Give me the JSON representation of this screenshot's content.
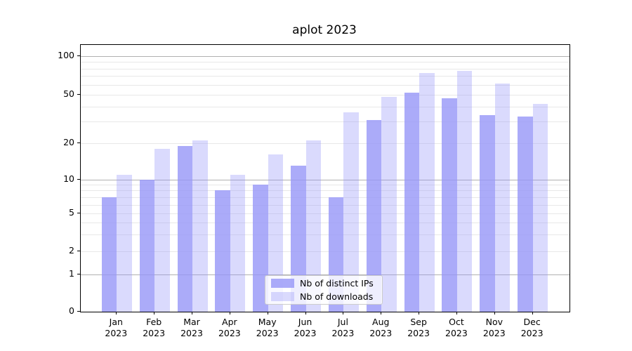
{
  "chart_data": {
    "type": "bar",
    "title": "aplot 2023",
    "months": [
      "Jan",
      "Feb",
      "Mar",
      "Apr",
      "May",
      "Jun",
      "Jul",
      "Aug",
      "Sep",
      "Oct",
      "Nov",
      "Dec"
    ],
    "year_label": "2023",
    "series": [
      {
        "name": "Nb of distinct IPs",
        "values": [
          7,
          10,
          19,
          8,
          9,
          13,
          7,
          31,
          52,
          47,
          34,
          33
        ],
        "color": "rgba(150,150,248,0.8)"
      },
      {
        "name": "Nb of downloads",
        "values": [
          11,
          18,
          21,
          11,
          16,
          21,
          36,
          48,
          74,
          77,
          61,
          42
        ],
        "color": "rgba(150,150,248,0.35)"
      }
    ],
    "yscale": "symlog",
    "ylim": [
      0,
      120
    ],
    "y_ticks": [
      {
        "value": 0,
        "label": "0"
      },
      {
        "value": 1,
        "label": "1"
      },
      {
        "value": 2,
        "label": "2"
      },
      {
        "value": 5,
        "label": "5"
      },
      {
        "value": 10,
        "label": "10"
      },
      {
        "value": 20,
        "label": "20"
      },
      {
        "value": 50,
        "label": "50"
      },
      {
        "value": 100,
        "label": "100"
      }
    ],
    "grid": {
      "major_values": [
        1,
        10,
        100
      ],
      "minor_values": [
        2,
        3,
        4,
        5,
        6,
        7,
        8,
        9,
        20,
        30,
        40,
        50,
        60,
        70,
        80,
        90
      ],
      "on": true
    },
    "legend_position": "lower center",
    "colors": {
      "grid_major": "#b0b0b0",
      "grid_minor": "#e8e8e8",
      "spine": "#000000",
      "background": "#ffffff"
    }
  }
}
